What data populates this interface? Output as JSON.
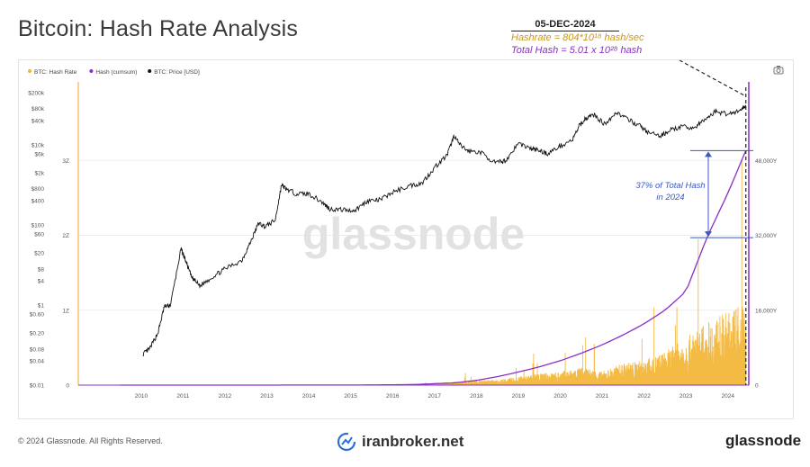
{
  "header": {
    "title": "Bitcoin: Hash Rate Analysis"
  },
  "annotation": {
    "date": "05-DEC-2024",
    "hashrate": "Hashrate = 804*10¹⁸ hash/sec",
    "total": "Total Hash = 5.01 x 10²⁸ hash",
    "share": [
      "37% of Total Hash",
      "in 2024"
    ]
  },
  "watermark": "glassnode",
  "footer": {
    "copyright": "© 2024 Glassnode. All Rights Reserved.",
    "mid": "iranbroker.net",
    "brand": "glassnode"
  },
  "colors": {
    "hashrate": "#f2b63a",
    "cumsum": "#8b2ec9",
    "price": "#111111",
    "annotation": "#3b57c4"
  },
  "icons": [
    "camera-icon",
    "iranbroker-logo-icon"
  ],
  "chart_data": {
    "type": "line",
    "legend": [
      "BTC: Hash Rate",
      "Hash (cumsum)",
      "BTC: Price [USD]"
    ],
    "x_ticks": [
      "2010",
      "2011",
      "2012",
      "2013",
      "2014",
      "2015",
      "2016",
      "2017",
      "2018",
      "2019",
      "2020",
      "2021",
      "2022",
      "2023",
      "2024"
    ],
    "price_axis": {
      "scale": "log",
      "labels": [
        "$200k",
        "$80k",
        "$40k",
        "$10k",
        "$6k",
        "$2k",
        "$800",
        "$400",
        "$100",
        "$60",
        "$20",
        "$8",
        "$4",
        "$1",
        "$0.60",
        "$0.20",
        "$0.08",
        "$0.04",
        "$0.01"
      ]
    },
    "hashrate_axis": {
      "labels": [
        "3Z",
        "2Z",
        "1Z",
        "0"
      ],
      "ylim": [
        0,
        4
      ]
    },
    "cumsum_axis": {
      "labels": [
        "48,000Y",
        "32,000Y",
        "16,000Y",
        "0"
      ],
      "ylim": [
        0,
        64000
      ]
    },
    "series": [
      {
        "name": "BTC: Price [USD]",
        "x": [
          2010.55,
          2010.7,
          2010.9,
          2011.05,
          2011.2,
          2011.45,
          2011.55,
          2011.7,
          2011.9,
          2012.2,
          2012.5,
          2012.9,
          2013.1,
          2013.3,
          2013.45,
          2013.7,
          2013.85,
          2013.95,
          2014.2,
          2014.5,
          2014.8,
          2015.0,
          2015.3,
          2015.6,
          2015.9,
          2016.2,
          2016.5,
          2016.9,
          2017.2,
          2017.5,
          2017.8,
          2017.97,
          2018.1,
          2018.3,
          2018.6,
          2018.95,
          2019.2,
          2019.5,
          2019.8,
          2020.0,
          2020.2,
          2020.5,
          2020.8,
          2020.95,
          2021.1,
          2021.3,
          2021.55,
          2021.85,
          2022.1,
          2022.4,
          2022.6,
          2022.9,
          2023.1,
          2023.4,
          2023.7,
          2023.95,
          2024.2,
          2024.5,
          2024.8,
          2024.93
        ],
        "values": [
          0.06,
          0.08,
          0.2,
          0.9,
          1.0,
          25,
          14,
          5,
          3,
          5,
          8,
          13,
          35,
          110,
          90,
          130,
          1000,
          800,
          600,
          600,
          380,
          250,
          240,
          230,
          400,
          420,
          650,
          950,
          1100,
          2700,
          5500,
          17000,
          10000,
          7000,
          6500,
          3500,
          4000,
          11000,
          8000,
          7200,
          6000,
          9300,
          13500,
          29000,
          45000,
          57000,
          33000,
          65000,
          43000,
          30000,
          20000,
          16500,
          23000,
          28000,
          26500,
          42000,
          68000,
          59000,
          72000,
          98000
        ]
      },
      {
        "name": "Hash (cumsum)",
        "x": [
          2010,
          2013,
          2016,
          2017,
          2018,
          2018.5,
          2019,
          2019.5,
          2020,
          2020.5,
          2021,
          2021.5,
          2022,
          2022.5,
          2023,
          2023.5,
          2024,
          2024.5,
          2024.93
        ],
        "values": [
          0,
          2,
          30,
          120,
          500,
          1000,
          1800,
          2800,
          3900,
          5200,
          6800,
          8600,
          10700,
          13100,
          16000,
          20000,
          31500,
          41000,
          50100
        ]
      },
      {
        "name": "BTC: Hash Rate",
        "x": [
          2016,
          2017,
          2017.5,
          2018,
          2018.5,
          2019,
          2019.5,
          2020,
          2020.5,
          2021,
          2021.5,
          2022,
          2022.5,
          2023,
          2023.5,
          2024,
          2024.5,
          2024.93
        ],
        "values": [
          0.002,
          0.006,
          0.012,
          0.03,
          0.05,
          0.05,
          0.08,
          0.11,
          0.13,
          0.17,
          0.13,
          0.21,
          0.24,
          0.32,
          0.45,
          0.6,
          0.7,
          0.8
        ]
      }
    ]
  }
}
